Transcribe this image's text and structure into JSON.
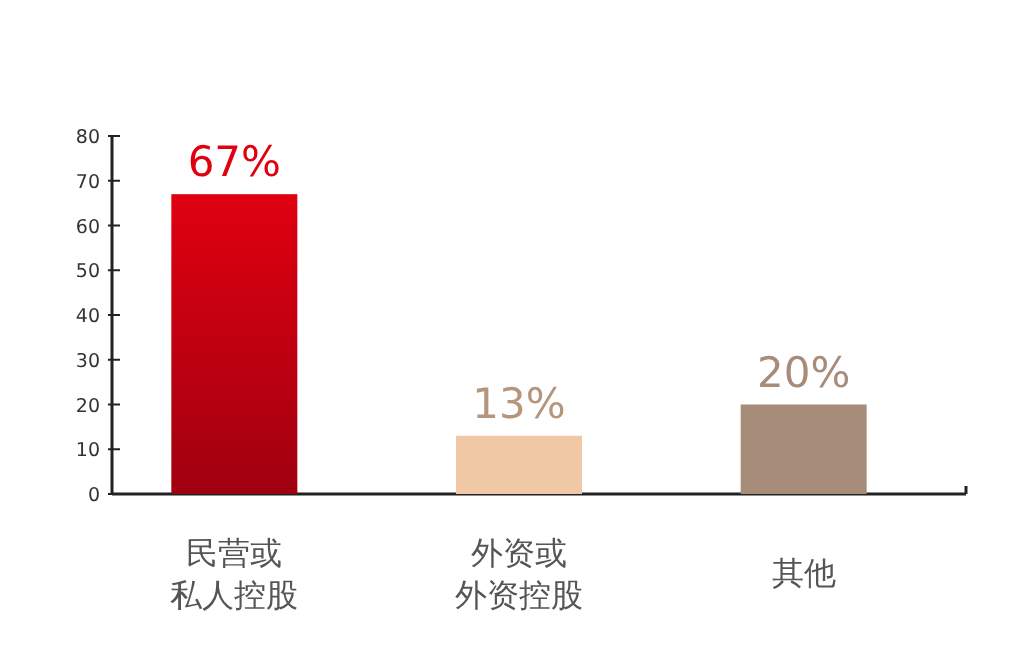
{
  "chart_data": {
    "type": "bar",
    "categories": [
      "民营或私人控股",
      "外资或外资控股",
      "其他"
    ],
    "values": [
      67,
      13,
      20
    ],
    "colors": [
      "#e00010",
      "#f0c8a6",
      "#a88c7a"
    ],
    "value_labels": [
      "67%",
      "13%",
      "20%"
    ],
    "ylim": [
      0,
      80
    ],
    "yticks": [
      0,
      10,
      20,
      30,
      40,
      50,
      60,
      70,
      80
    ],
    "grid": false
  }
}
